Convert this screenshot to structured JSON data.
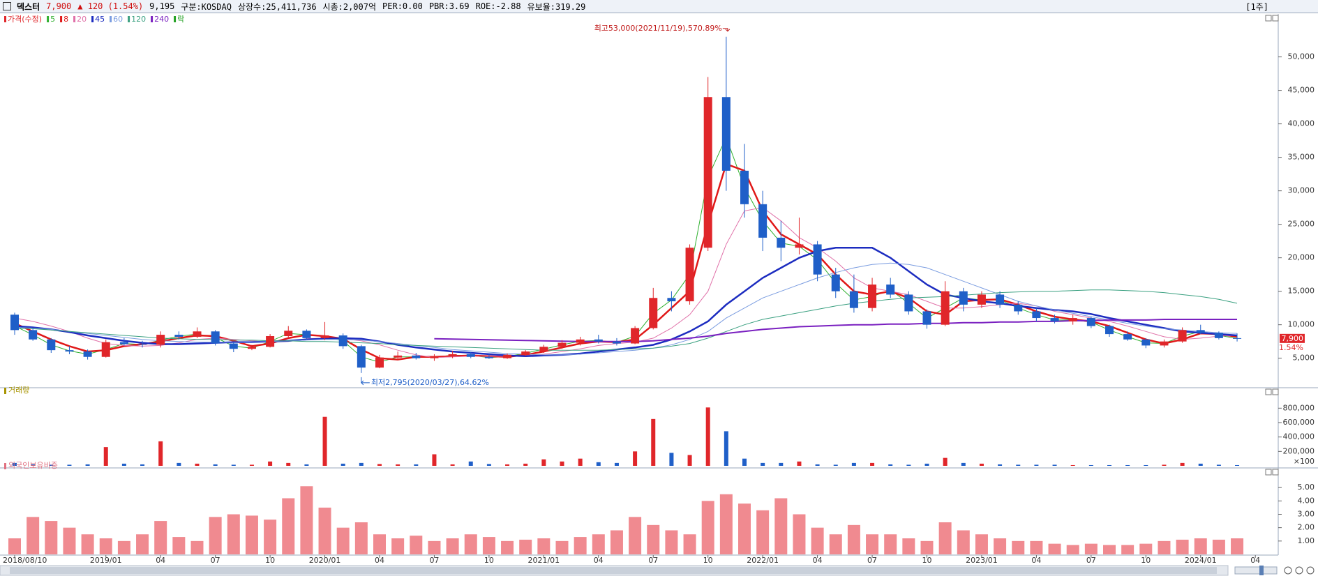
{
  "header": {
    "name": "덱스터",
    "price": "7,900",
    "change": "▲ 120 (1.54%)",
    "items": [
      "9,195",
      "구분:KOSDAQ",
      "상장수:25,411,736",
      "시총:2,007억",
      "PER:0.00",
      "PBR:3.69",
      "ROE:-2.88",
      "유보율:319.29"
    ],
    "period": "[1주]"
  },
  "chart_data": [
    {
      "type": "candlestick",
      "price_label": "가격(수정)",
      "ex_rights_label": "락",
      "ex_rights_color": "#20a020",
      "up_color": "#e0262a",
      "down_color": "#1f5fc8",
      "categories": [
        "2018/08/10",
        null,
        null,
        null,
        null,
        "2019/01",
        null,
        null,
        "04",
        null,
        null,
        "07",
        null,
        null,
        "10",
        null,
        null,
        "2020/01",
        null,
        null,
        "04",
        null,
        null,
        "07",
        null,
        null,
        "10",
        null,
        null,
        "2021/01",
        null,
        null,
        "04",
        null,
        null,
        "07",
        null,
        null,
        "10",
        null,
        null,
        "2022/01",
        null,
        null,
        "04",
        null,
        null,
        "07",
        null,
        null,
        "10",
        null,
        null,
        "2023/01",
        null,
        null,
        "04",
        null,
        null,
        "07",
        null,
        null,
        "10",
        null,
        null,
        "2024/01",
        null,
        null,
        "04"
      ],
      "open": [
        11500,
        9200,
        7800,
        6200,
        6000,
        5200,
        7400,
        7100,
        7000,
        8500,
        8200,
        9000,
        7200,
        6400,
        6700,
        8300,
        9100,
        8000,
        8400,
        6800,
        3600,
        5100,
        5400,
        5000,
        5300,
        5600,
        5200,
        5000,
        5500,
        6000,
        6700,
        7300,
        7800,
        7500,
        7200,
        9500,
        14000,
        13500,
        21500,
        44000,
        33000,
        28000,
        23000,
        21500,
        22000,
        17500,
        15000,
        12500,
        16000,
        14500,
        12000,
        10000,
        15000,
        13000,
        14500,
        13000,
        12000,
        11000,
        10500,
        11000,
        9800,
        8600,
        7800,
        6900,
        7500,
        9200,
        8800,
        8000,
        null
      ],
      "high": [
        11800,
        9500,
        8000,
        6800,
        6300,
        7800,
        8000,
        7600,
        9000,
        9000,
        9600,
        9200,
        7500,
        7000,
        8600,
        9800,
        9300,
        10400,
        8700,
        7000,
        5500,
        6000,
        5800,
        5600,
        6100,
        5900,
        5600,
        5700,
        6200,
        7000,
        7700,
        8200,
        8500,
        8000,
        9800,
        15500,
        15000,
        22000,
        47000,
        53000,
        37000,
        30000,
        25500,
        26000,
        22500,
        18500,
        17500,
        17000,
        17000,
        15000,
        12300,
        16500,
        15500,
        15000,
        15000,
        13500,
        12500,
        11500,
        11500,
        11200,
        10000,
        9000,
        8000,
        7800,
        9600,
        10000,
        9000,
        8700,
        null
      ],
      "low": [
        8500,
        7600,
        5800,
        5600,
        4800,
        5100,
        6900,
        6600,
        6600,
        7800,
        8000,
        6900,
        5900,
        6200,
        6600,
        8000,
        7800,
        7700,
        6400,
        2795,
        3500,
        4800,
        4800,
        4600,
        5000,
        5000,
        4900,
        4900,
        5300,
        5800,
        6400,
        6900,
        7200,
        6900,
        7100,
        9300,
        12000,
        13000,
        21000,
        30000,
        26000,
        21000,
        19500,
        20500,
        16500,
        14000,
        11800,
        12000,
        14000,
        11500,
        9400,
        9800,
        12000,
        12500,
        12500,
        11500,
        10500,
        10200,
        10000,
        9500,
        8200,
        7600,
        6500,
        6600,
        7300,
        8600,
        7800,
        7500,
        null
      ],
      "close": [
        9200,
        7800,
        6200,
        6000,
        5200,
        7400,
        7100,
        7000,
        8500,
        8200,
        9000,
        7200,
        6400,
        6700,
        8300,
        9100,
        8000,
        8400,
        6800,
        3600,
        5100,
        5400,
        5000,
        5300,
        5600,
        5200,
        5000,
        5500,
        6000,
        6700,
        7300,
        7800,
        7500,
        7200,
        9500,
        14000,
        13500,
        21500,
        44000,
        33000,
        28000,
        23000,
        21500,
        22000,
        17500,
        15000,
        12500,
        16000,
        14500,
        12000,
        10000,
        15000,
        13000,
        14500,
        13000,
        12000,
        11000,
        10500,
        11000,
        9800,
        8600,
        7800,
        6900,
        7500,
        9200,
        8800,
        8000,
        7900,
        null
      ],
      "series": [
        {
          "name": "5",
          "color": "#30b030",
          "line_width": 1,
          "values": [
            9800,
            8500,
            7000,
            6100,
            5600,
            6300,
            7200,
            7050,
            7700,
            8300,
            8600,
            8100,
            6800,
            6500,
            7500,
            8700,
            8500,
            8200,
            7600,
            5200,
            4400,
            5200,
            5200,
            5150,
            5450,
            5400,
            5100,
            5250,
            5750,
            6350,
            7000,
            7550,
            7650,
            7350,
            8300,
            11700,
            13700,
            17500,
            32000,
            38000,
            30500,
            25500,
            22200,
            21700,
            19700,
            16200,
            13700,
            14200,
            15200,
            13200,
            11000,
            12500,
            14000,
            13700,
            13700,
            12500,
            11500,
            10700,
            10700,
            10400,
            9200,
            8200,
            7300,
            7200,
            8300,
            9000,
            8400,
            7950,
            null
          ]
        },
        {
          "name": "8",
          "color": "#e01818",
          "line_width": 2.5,
          "values": [
            10200,
            9000,
            7800,
            6800,
            6000,
            6200,
            6800,
            7100,
            7500,
            8000,
            8400,
            8300,
            7600,
            6800,
            7200,
            8000,
            8500,
            8300,
            7900,
            6300,
            5000,
            4800,
            5200,
            5200,
            5300,
            5400,
            5300,
            5200,
            5500,
            6000,
            6600,
            7200,
            7500,
            7400,
            7800,
            10000,
            12500,
            15000,
            25000,
            34000,
            33000,
            27000,
            23500,
            22000,
            20500,
            17500,
            15000,
            14500,
            15000,
            14000,
            12000,
            11500,
            13500,
            13700,
            13800,
            13000,
            12000,
            11200,
            10800,
            10500,
            9800,
            8800,
            7800,
            7200,
            7800,
            8700,
            8600,
            8200,
            null
          ]
        },
        {
          "name": "20",
          "color": "#e070a8",
          "line_width": 1,
          "values": [
            11000,
            10500,
            9800,
            9000,
            8000,
            7200,
            6900,
            6800,
            6900,
            7300,
            7800,
            8000,
            7800,
            7600,
            7400,
            7500,
            7900,
            8000,
            7900,
            7600,
            7000,
            6200,
            5500,
            5100,
            5200,
            5300,
            5300,
            5300,
            5400,
            5600,
            6000,
            6400,
            6900,
            7200,
            7400,
            8000,
            9500,
            11500,
            15000,
            22000,
            27000,
            27500,
            25500,
            23000,
            21500,
            19500,
            17000,
            15500,
            15000,
            14500,
            13500,
            12500,
            12500,
            12700,
            13000,
            13200,
            12800,
            12000,
            11500,
            11000,
            10500,
            9800,
            9000,
            8200,
            7800,
            8000,
            8300,
            8400,
            null
          ]
        },
        {
          "name": "45",
          "color": "#1c2cc0",
          "line_width": 2.5,
          "values": [
            9800,
            9600,
            9300,
            8900,
            8400,
            8000,
            7600,
            7300,
            7100,
            7100,
            7200,
            7300,
            7400,
            7400,
            7500,
            7600,
            7800,
            7900,
            8000,
            7900,
            7500,
            7000,
            6600,
            6300,
            6000,
            5800,
            5600,
            5400,
            5300,
            5400,
            5500,
            5700,
            6000,
            6300,
            6600,
            7000,
            7800,
            9000,
            10500,
            13000,
            15000,
            17000,
            18500,
            20000,
            21000,
            21500,
            21500,
            21500,
            20000,
            18000,
            16000,
            14500,
            14000,
            13500,
            13200,
            12800,
            12500,
            12200,
            12000,
            11600,
            11000,
            10500,
            10000,
            9500,
            9000,
            8800,
            8600,
            8400,
            null
          ]
        },
        {
          "name": "60",
          "color": "#7a9ce0",
          "line_width": 1,
          "values": [
            9600,
            9500,
            9300,
            9000,
            8700,
            8400,
            8100,
            7800,
            7600,
            7500,
            7400,
            7400,
            7400,
            7400,
            7500,
            7600,
            7700,
            7800,
            7800,
            7700,
            7500,
            7200,
            6900,
            6600,
            6300,
            6100,
            5900,
            5700,
            5600,
            5500,
            5500,
            5600,
            5800,
            6000,
            6200,
            6500,
            7000,
            7800,
            9000,
            11000,
            12500,
            14000,
            15000,
            16000,
            17000,
            17800,
            18500,
            19000,
            19200,
            19000,
            18500,
            17500,
            16500,
            15500,
            14500,
            13500,
            12800,
            12200,
            11700,
            11200,
            10700,
            10200,
            9800,
            9400,
            9200,
            9000,
            8800,
            8700,
            null
          ]
        },
        {
          "name": "120",
          "color": "#3aa080",
          "line_width": 1,
          "values": [
            9500,
            9400,
            9200,
            9000,
            8800,
            8600,
            8400,
            8200,
            8000,
            7900,
            7800,
            7800,
            7700,
            7700,
            7600,
            7600,
            7500,
            7500,
            7400,
            7300,
            7200,
            7000,
            6900,
            6800,
            6700,
            6600,
            6500,
            6400,
            6300,
            6200,
            6200,
            6200,
            6200,
            6300,
            6400,
            6500,
            6800,
            7200,
            8000,
            9000,
            10000,
            10800,
            11300,
            11800,
            12300,
            12800,
            13200,
            13500,
            13800,
            14000,
            14100,
            14200,
            14400,
            14600,
            14800,
            14900,
            15000,
            15000,
            15100,
            15200,
            15200,
            15100,
            15000,
            14800,
            14500,
            14200,
            13800,
            13200,
            null
          ]
        },
        {
          "name": "240",
          "color": "#7a20c0",
          "line_width": 2,
          "values": [
            null,
            null,
            null,
            null,
            null,
            null,
            null,
            null,
            null,
            null,
            null,
            null,
            null,
            null,
            null,
            null,
            null,
            null,
            null,
            null,
            null,
            null,
            null,
            7900,
            7850,
            7800,
            7750,
            7700,
            7650,
            7600,
            7550,
            7500,
            7500,
            7500,
            7500,
            7600,
            7800,
            8000,
            8300,
            8700,
            9000,
            9300,
            9500,
            9700,
            9800,
            9900,
            10000,
            10000,
            10100,
            10100,
            10200,
            10200,
            10300,
            10300,
            10400,
            10400,
            10500,
            10500,
            10600,
            10600,
            10700,
            10700,
            10700,
            10800,
            10800,
            10800,
            10800,
            10800,
            null
          ]
        }
      ],
      "ylim": [
        800,
        56000
      ],
      "yticks": [
        {
          "value": 5000,
          "label": "5,000"
        },
        {
          "value": 10000,
          "label": "10,000"
        },
        {
          "value": 15000,
          "label": "15,000"
        },
        {
          "value": 20000,
          "label": "20,000"
        },
        {
          "value": 25000,
          "label": "25,000"
        },
        {
          "value": 30000,
          "label": "30,000"
        },
        {
          "value": 35000,
          "label": "35,000"
        },
        {
          "value": 40000,
          "label": "40,000"
        },
        {
          "value": 45000,
          "label": "45,000"
        },
        {
          "value": 50000,
          "label": "50,000"
        }
      ],
      "high_annotation": "최고53,000(2021/11/19),570.89%",
      "low_annotation": "최저2,795(2020/03/27),64.62%",
      "last_price_label": "7,900",
      "last_change_label": "1.54%"
    },
    {
      "type": "bar",
      "title": "거래량",
      "title_color": "#a89400",
      "up_color": "#e0262a",
      "down_color": "#1f5fc8",
      "unit_label": "×100",
      "values": [
        40000,
        20000,
        15000,
        15000,
        20000,
        260000,
        30000,
        20000,
        340000,
        40000,
        30000,
        20000,
        15000,
        15000,
        60000,
        40000,
        20000,
        680000,
        30000,
        40000,
        25000,
        20000,
        20000,
        160000,
        20000,
        60000,
        25000,
        20000,
        30000,
        90000,
        60000,
        100000,
        50000,
        40000,
        200000,
        650000,
        180000,
        150000,
        810000,
        480000,
        100000,
        40000,
        40000,
        60000,
        20000,
        15000,
        40000,
        40000,
        20000,
        15000,
        30000,
        110000,
        40000,
        30000,
        20000,
        15000,
        15000,
        15000,
        10000,
        10000,
        10000,
        10000,
        10000,
        15000,
        40000,
        30000,
        15000,
        10000,
        null
      ],
      "ylim": [
        0,
        900000
      ],
      "yticks": [
        {
          "value": 200000,
          "label": "200,000"
        },
        {
          "value": 400000,
          "label": "400,000"
        },
        {
          "value": 600000,
          "label": "600,000"
        },
        {
          "value": 800000,
          "label": "800,000"
        }
      ]
    },
    {
      "type": "bar",
      "title": "외국인보유비중",
      "title_color": "#e07080",
      "color": "#f08a90",
      "values": [
        1.2,
        2.8,
        2.5,
        2.0,
        1.5,
        1.2,
        1.0,
        1.5,
        2.5,
        1.3,
        1.0,
        2.8,
        3.0,
        2.9,
        2.6,
        4.2,
        5.1,
        3.5,
        2.0,
        2.4,
        1.5,
        1.2,
        1.4,
        1.0,
        1.2,
        1.5,
        1.3,
        1.0,
        1.1,
        1.2,
        1.0,
        1.3,
        1.5,
        1.8,
        2.8,
        2.2,
        1.8,
        1.5,
        4.0,
        4.5,
        3.8,
        3.3,
        4.2,
        3.0,
        2.0,
        1.5,
        2.2,
        1.5,
        1.5,
        1.2,
        1.0,
        2.4,
        1.8,
        1.5,
        1.2,
        1.0,
        1.0,
        0.8,
        0.7,
        0.8,
        0.7,
        0.7,
        0.8,
        1.0,
        1.1,
        1.2,
        1.1,
        1.2,
        null
      ],
      "ylim": [
        0,
        6
      ],
      "yticks": [
        {
          "value": 1,
          "label": "1.00"
        },
        {
          "value": 2,
          "label": "2.00"
        },
        {
          "value": 3,
          "label": "3.00"
        },
        {
          "value": 4,
          "label": "4.00"
        },
        {
          "value": 5,
          "label": "5.00"
        }
      ]
    }
  ]
}
